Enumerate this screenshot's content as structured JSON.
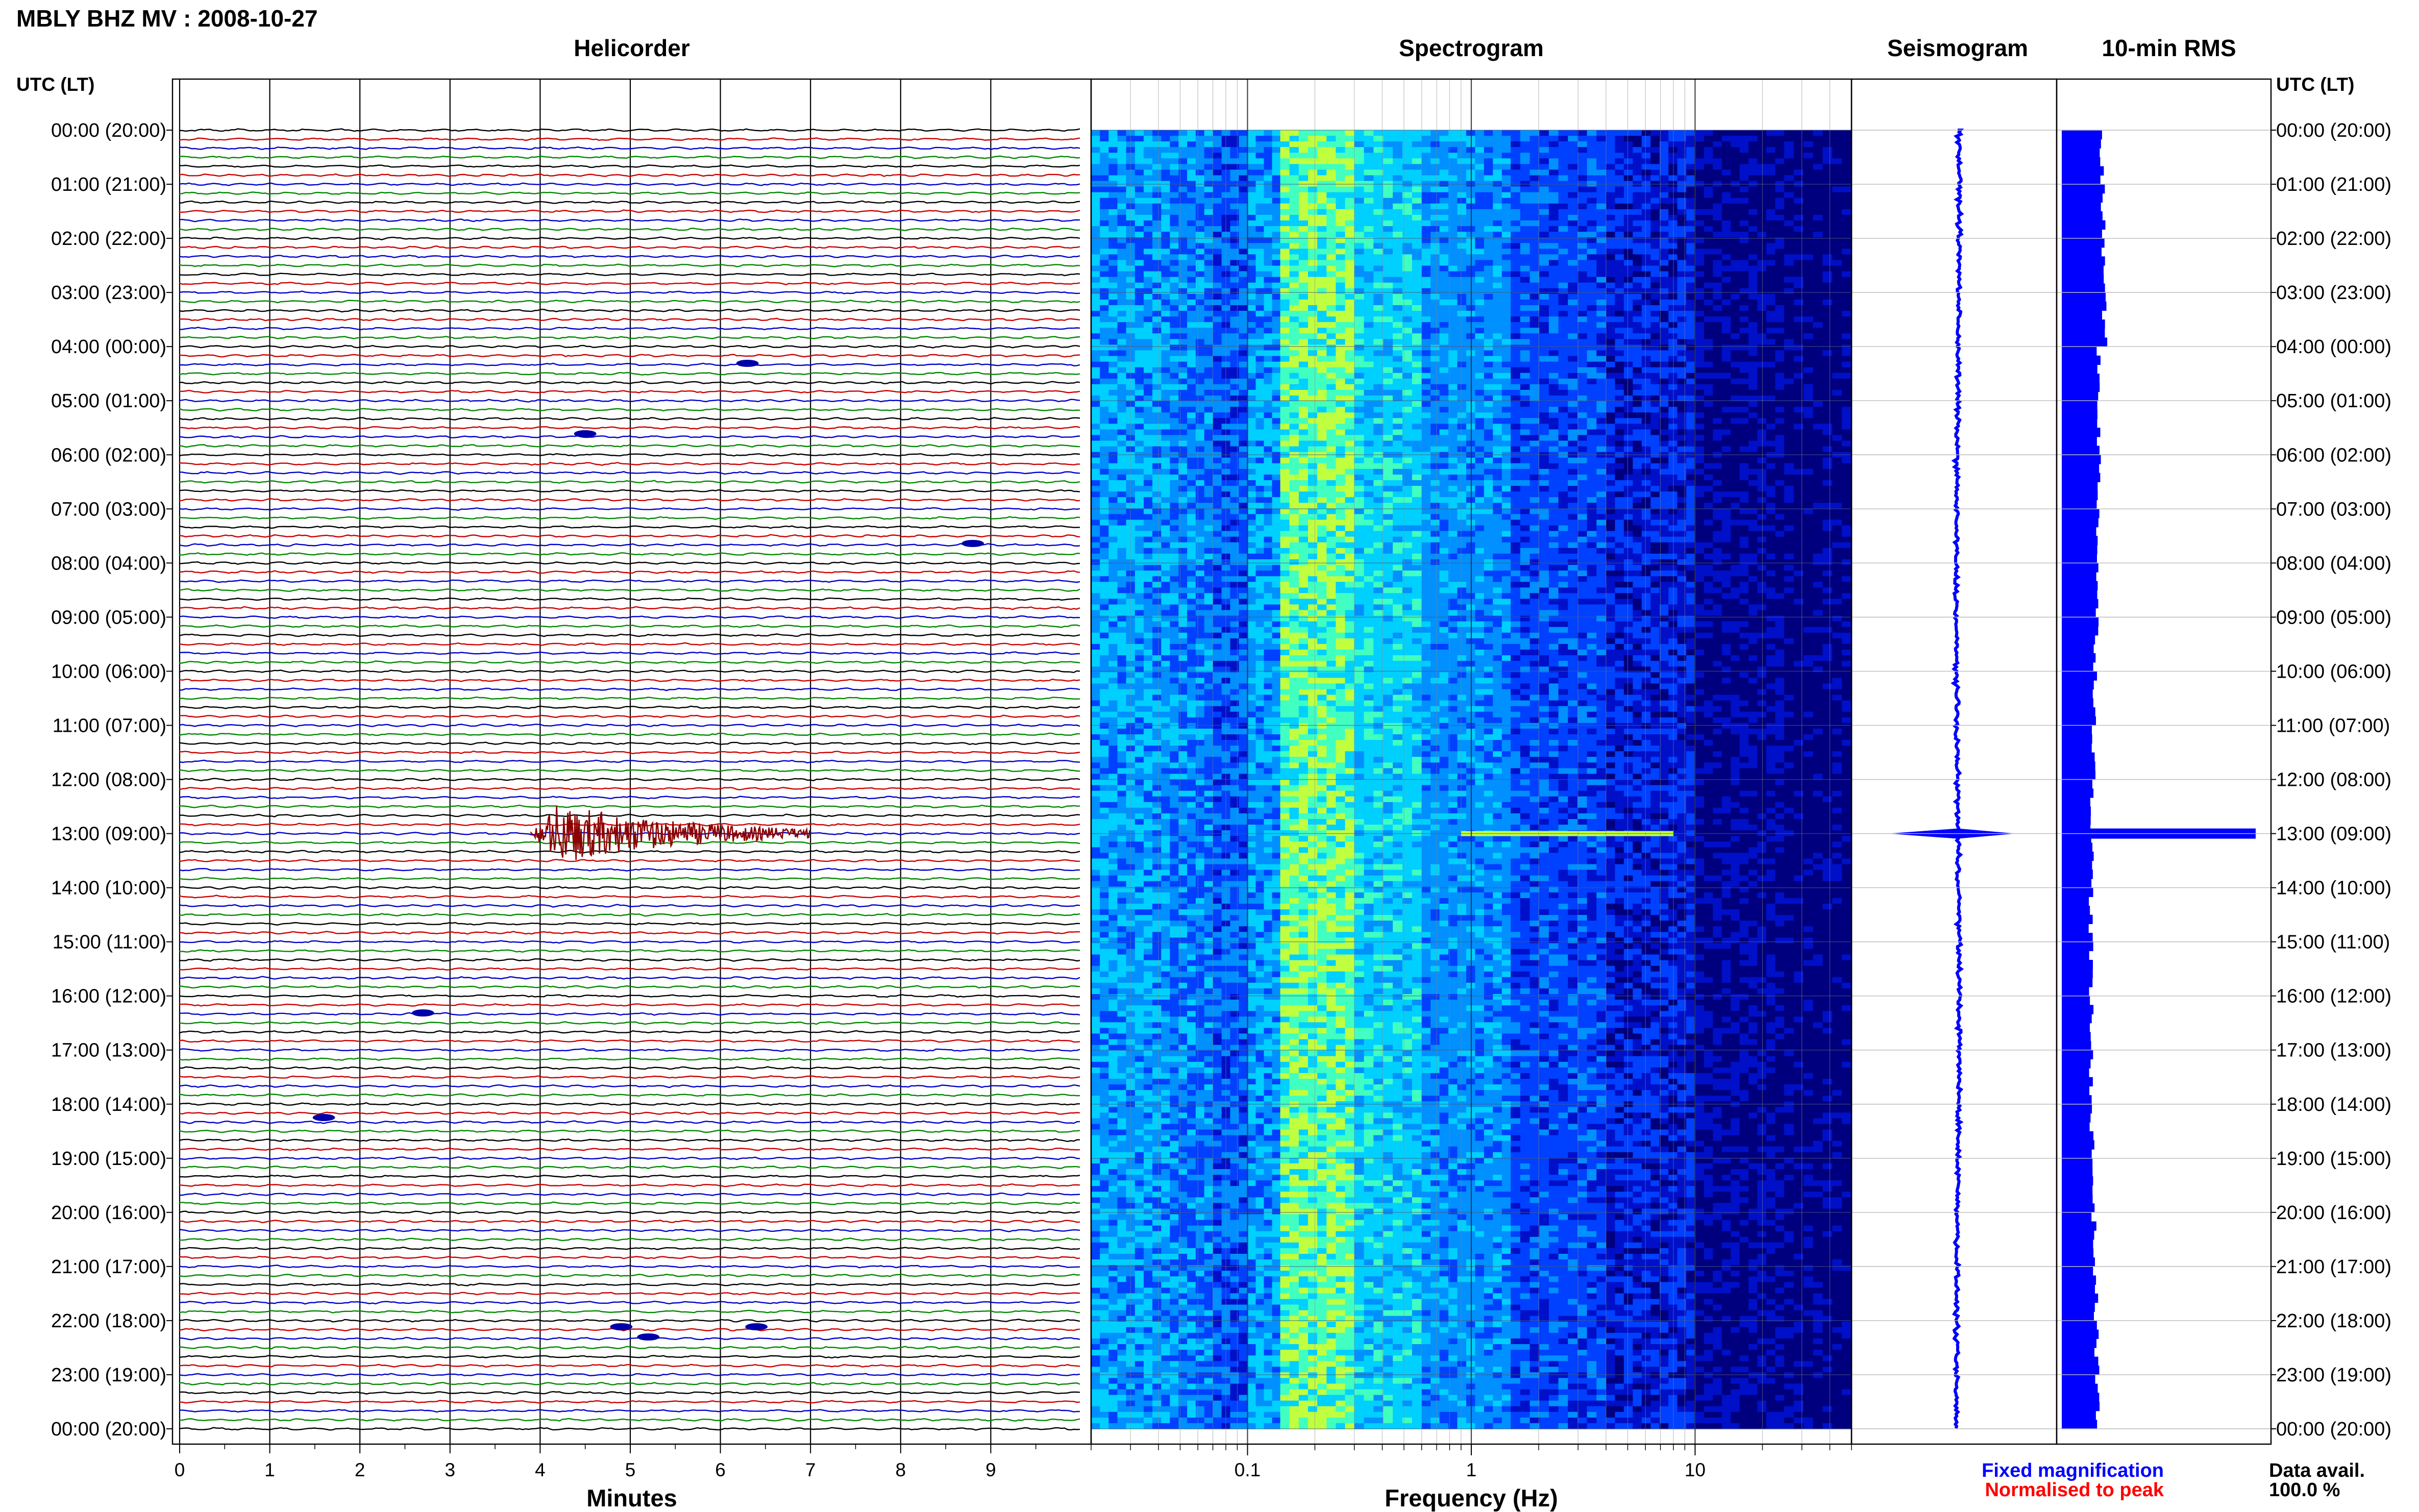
{
  "header": {
    "title": "MBLY BHZ MV : 2008-10-27",
    "utc_label_left": "UTC (LT)",
    "utc_label_right": "UTC (LT)"
  },
  "chart_data": [
    {
      "type": "line",
      "title": "Helicorder",
      "xlabel": "Minutes",
      "ylabel": "",
      "x_ticks": [
        "0",
        "1",
        "2",
        "3",
        "4",
        "5",
        "6",
        "7",
        "8",
        "9"
      ],
      "xlim": [
        0,
        10
      ],
      "trace_count": 145,
      "trace_colors_cycle": [
        "#000000",
        "#cc0000",
        "#0000cc",
        "#008800"
      ],
      "event": {
        "time_label": "13:00 (09:00)",
        "start_minute": 3.9,
        "peak_minute": 4.2,
        "end_minute": 7.0,
        "color": "#8b0000"
      },
      "y_labels": [
        "00:00 (20:00)",
        "01:00 (21:00)",
        "02:00 (22:00)",
        "03:00 (23:00)",
        "04:00 (00:00)",
        "05:00 (01:00)",
        "06:00 (02:00)",
        "07:00 (03:00)",
        "08:00 (04:00)",
        "09:00 (05:00)",
        "10:00 (06:00)",
        "11:00 (07:00)",
        "12:00 (08:00)",
        "13:00 (09:00)",
        "14:00 (10:00)",
        "15:00 (11:00)",
        "16:00 (12:00)",
        "17:00 (13:00)",
        "18:00 (14:00)",
        "19:00 (15:00)",
        "20:00 (16:00)",
        "21:00 (17:00)",
        "22:00 (18:00)",
        "23:00 (19:00)",
        "00:00 (20:00)"
      ]
    },
    {
      "type": "heatmap",
      "title": "Spectrogram",
      "xlabel": "Frequency (Hz)",
      "x_scale": "log",
      "xlim": [
        0.02,
        50
      ],
      "x_ticks": [
        "0.1",
        "1",
        "10"
      ],
      "colormap": [
        "#00007f",
        "#0010c8",
        "#0040ff",
        "#0090ff",
        "#00d0ff",
        "#40ffc0",
        "#c0ff40"
      ],
      "event_line": {
        "time_label": "13:00 (09:00)",
        "freq_from_hz": 0.9,
        "freq_to_hz": 8.0
      }
    },
    {
      "type": "line",
      "title": "Seismogram",
      "color": "#0000ff",
      "event": {
        "time_label": "13:00 (09:00)"
      }
    },
    {
      "type": "bar",
      "title": "10-min RMS",
      "color": "#0000ff",
      "event": {
        "time_label": "13:00 (09:00)"
      }
    }
  ],
  "legend": {
    "fixed": "Fixed magnification",
    "fixed_color": "#0000ff",
    "normalised": "Normalised to peak",
    "normalised_color": "#ff0000",
    "avail_label": "Data avail.",
    "avail_value": "100.0 %"
  }
}
